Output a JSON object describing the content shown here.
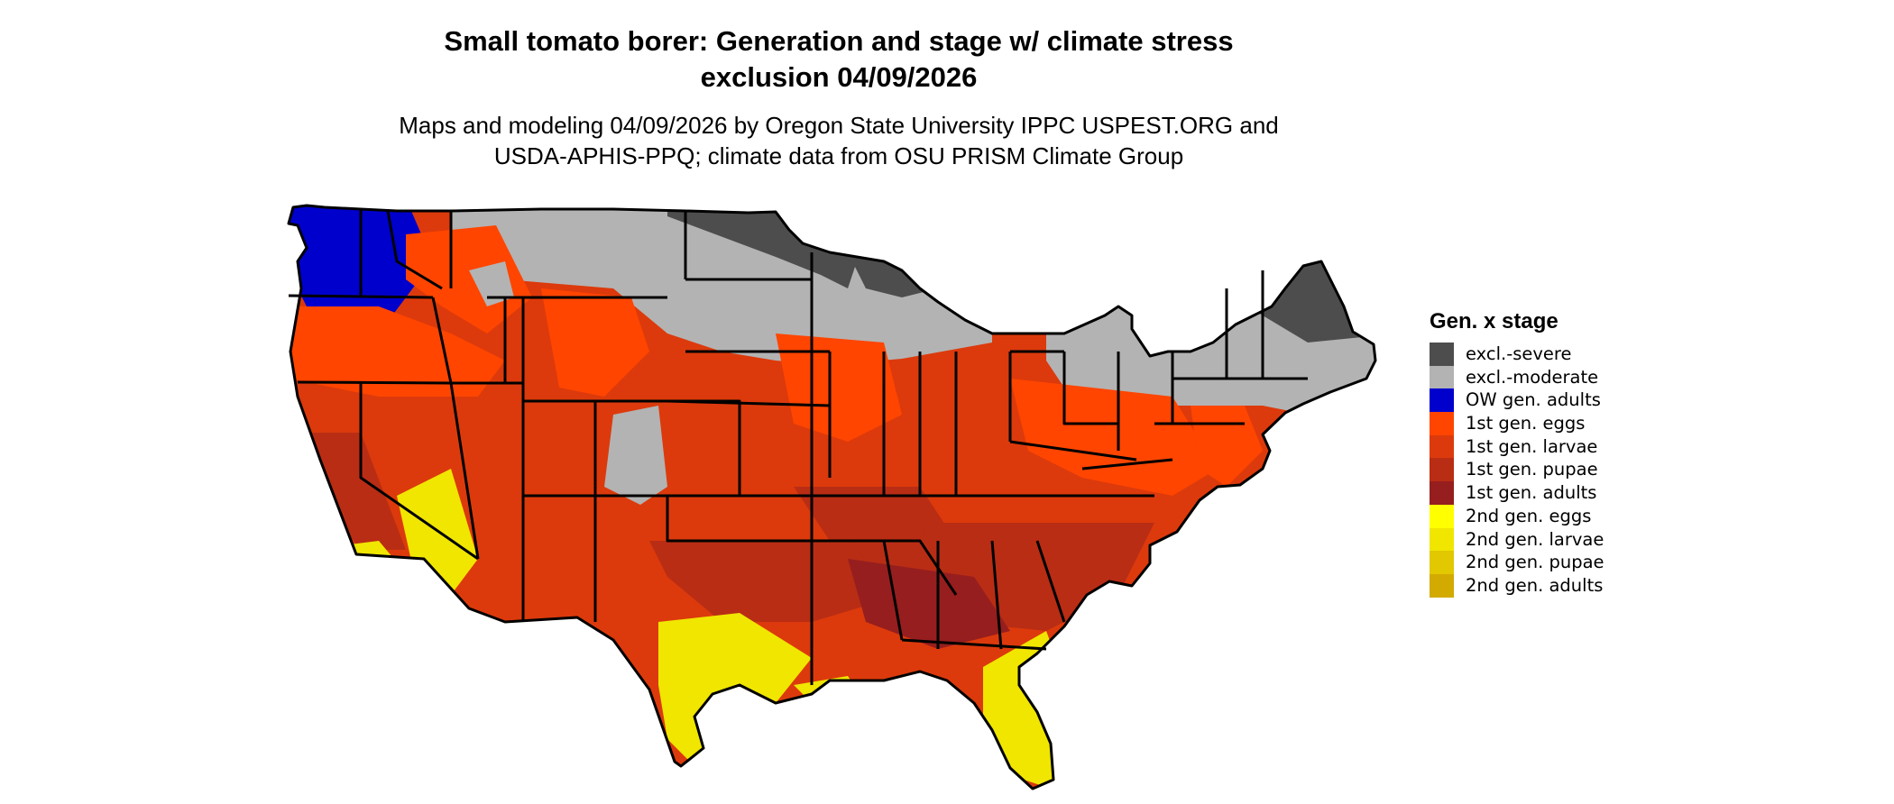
{
  "title": {
    "line1": "Small tomato borer: Generation and stage w/ climate stress",
    "line2": "exclusion 04/09/2026"
  },
  "subtitle": {
    "line1": "Maps and modeling 04/09/2026 by Oregon State University IPPC USPEST.ORG and",
    "line2": "USDA-APHIS-PPQ; climate data from OSU PRISM Climate Group"
  },
  "legend": {
    "title": "Gen. x stage",
    "items": [
      {
        "label": "excl.-severe",
        "color": "#4d4d4d"
      },
      {
        "label": "excl.-moderate",
        "color": "#b3b3b3"
      },
      {
        "label": "OW gen. adults",
        "color": "#0000cd"
      },
      {
        "label": "1st gen. eggs",
        "color": "#ff4500"
      },
      {
        "label": "1st gen. larvae",
        "color": "#dc3a0c"
      },
      {
        "label": "1st gen. pupae",
        "color": "#b92d14"
      },
      {
        "label": "1st gen. adults",
        "color": "#961e1e"
      },
      {
        "label": "2nd gen. eggs",
        "color": "#ffff00"
      },
      {
        "label": "2nd gen. larvae",
        "color": "#f0e600"
      },
      {
        "label": "2nd gen. pupae",
        "color": "#e1c800"
      },
      {
        "label": "2nd gen. adults",
        "color": "#d2aa00"
      }
    ]
  }
}
